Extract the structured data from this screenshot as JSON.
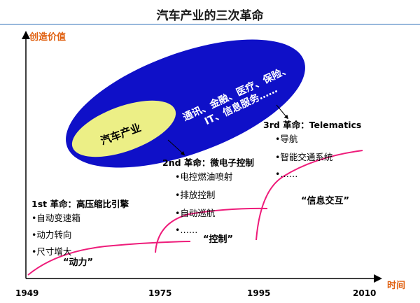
{
  "title": "汽车产业的三次革命",
  "axes": {
    "y_label": "创造价值",
    "x_label": "时间"
  },
  "years": [
    "1949",
    "1975",
    "1995",
    "2010"
  ],
  "ellipse": {
    "core_label": "汽车产业",
    "outer_label_line1": "通讯、金融、医疗、保险、",
    "outer_label_line2": "IT、信息服务……"
  },
  "revolutions": [
    {
      "heading": "1st 革命：高压缩比引擎",
      "items": [
        "•自动变速箱",
        "•动力转向",
        "•尺寸增大"
      ],
      "quote": "“动力”"
    },
    {
      "heading": "2nd 革命：微电子控制",
      "items": [
        "•电控燃油喷射",
        "•排放控制",
        "•自动巡航",
        "•……"
      ],
      "quote": "“控制”"
    },
    {
      "heading": "3rd 革命：Telematics",
      "items": [
        "•导航",
        "•智能交通系统",
        "•……"
      ],
      "quote": "“信息交互”"
    }
  ],
  "colors": {
    "ellipse_blue": "#0f10c8",
    "core_yellow": "#ecef86",
    "curve_magenta": "#ee1c7a",
    "axis_orange": "#e06010",
    "title_rule": "#2c6fb7"
  }
}
